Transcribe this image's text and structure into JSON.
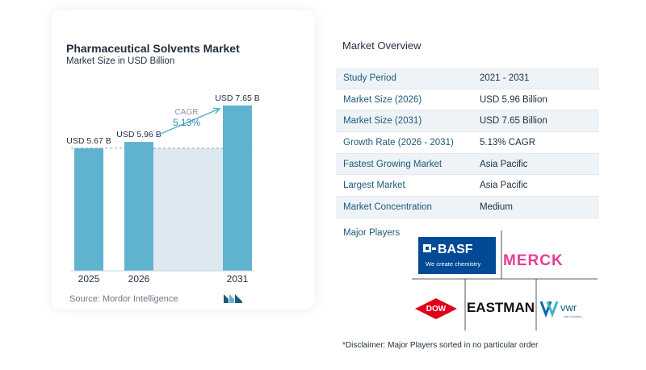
{
  "chart_data": {
    "type": "bar",
    "title": "Pharmaceutical Solvents Market",
    "subtitle": "Market Size in USD Billion",
    "categories": [
      "2025",
      "2026",
      "2031"
    ],
    "values": [
      5.67,
      5.96,
      7.65
    ],
    "value_labels": [
      "USD 5.67 B",
      "USD 5.96 B",
      "USD 7.65 B"
    ],
    "ylim": [
      0,
      8.2
    ],
    "cagr_label": "CAGR",
    "cagr_value": "5.13%",
    "bar_color": "#5fb3cf",
    "shade_color": "#dde8f0",
    "arrow_color": "#5fb3cf",
    "grid": false
  },
  "source": "Source:  Mordor Intelligence",
  "overview": {
    "title": "Market Overview",
    "rows": [
      {
        "label": "Study Period",
        "value": "2021 - 2031"
      },
      {
        "label": "Market Size (2026)",
        "value": "USD 5.96 Billion"
      },
      {
        "label": "Market Size (2031)",
        "value": "USD 7.65 Billion"
      },
      {
        "label": "Growth Rate (2026 - 2031)",
        "value": "5.13% CAGR"
      },
      {
        "label": "Fastest Growing Market",
        "value": "Asia Pacific"
      },
      {
        "label": "Largest Market",
        "value": "Asia Pacific"
      },
      {
        "label": "Market Concentration",
        "value": "Medium"
      }
    ],
    "major_players_label": "Major Players",
    "logos": {
      "basf_text": "BASF",
      "basf_tagline": "We create chemistry",
      "basf_mark": "O-",
      "merck": "MERCK",
      "dow": "DOW",
      "eastman": "EASTMAN",
      "vwr": "vwr",
      "vwr_tagline": "part of avantor"
    },
    "disclaimer": "*Disclaimer: Major Players sorted in no particular order"
  }
}
